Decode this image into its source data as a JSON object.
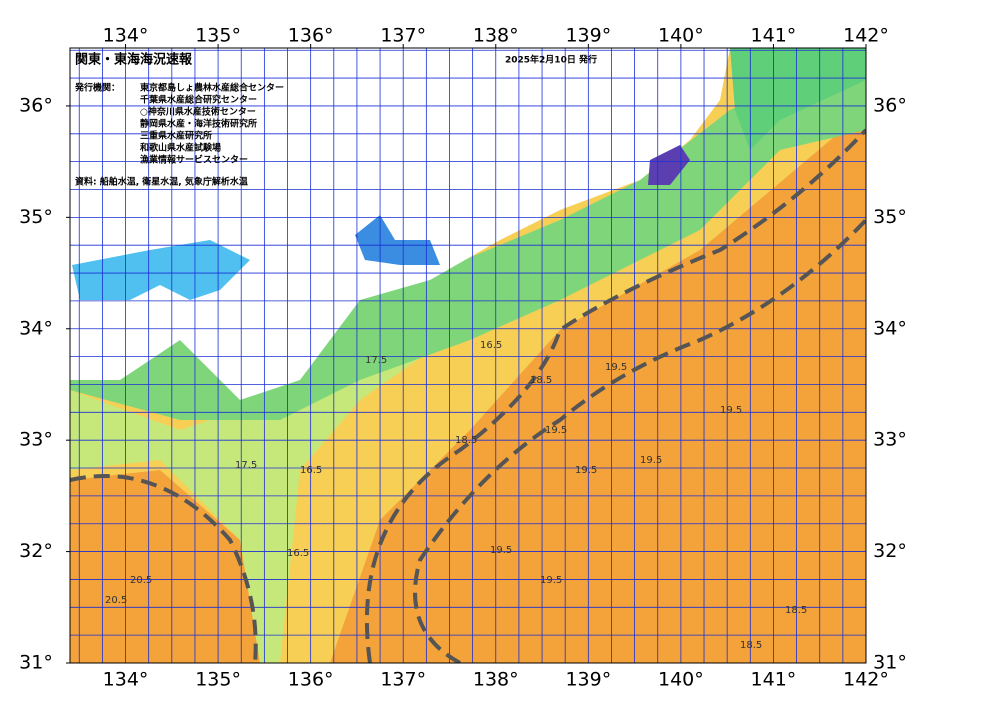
{
  "header": {
    "title": "関東・東海海況速報",
    "date": "2025年2月10日 発行"
  },
  "info": {
    "issuers_label": "発行機関：",
    "issuers": [
      "東京都島しょ農林水産総合センター",
      "千葉県水産総合研究センター",
      "○神奈川県水産技術センター",
      "静岡県水産・海洋技術研究所",
      "三重県水産研究所",
      "和歌山県水産試験場",
      "漁業情報サービスセンター"
    ],
    "source": "資料: 船舶水温, 衛星水温, 気象庁解析水温"
  },
  "map": {
    "lonlim": [
      133.4,
      142
    ],
    "latlim": [
      31,
      36.52
    ],
    "lon_ticks": [
      {
        "value": 134,
        "label": "134°"
      },
      {
        "value": 135,
        "label": "135°"
      },
      {
        "value": 136,
        "label": "136°"
      },
      {
        "value": 137,
        "label": "137°"
      },
      {
        "value": 138,
        "label": "138°"
      },
      {
        "value": 139,
        "label": "139°"
      },
      {
        "value": 140,
        "label": "140°"
      },
      {
        "value": 141,
        "label": "141°"
      },
      {
        "value": 142,
        "label": "142°"
      }
    ],
    "lat_ticks": [
      {
        "value": 31,
        "label": "31°"
      },
      {
        "value": 32,
        "label": "32°"
      },
      {
        "value": 33,
        "label": "33°"
      },
      {
        "value": 34,
        "label": "34°"
      },
      {
        "value": 35,
        "label": "35°"
      },
      {
        "value": 36,
        "label": "36°"
      }
    ],
    "contour_labels": [
      "16.5",
      "16.5",
      "17.5",
      "17.5",
      "18.5",
      "19.5",
      "19.5",
      "19.5",
      "19.5",
      "19.5",
      "19.5",
      "19.5",
      "18.5",
      "18.5",
      "20.5",
      "20.5",
      "18.5",
      "16.5"
    ]
  }
}
